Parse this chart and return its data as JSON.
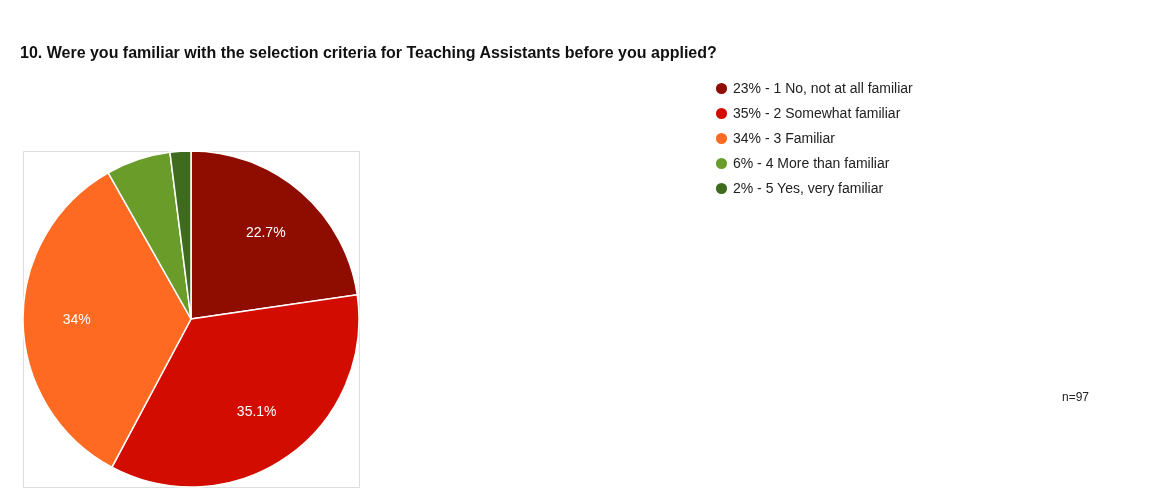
{
  "chart_data": {
    "type": "pie",
    "title": "10. Were you familiar with the selection criteria for Teaching Assistants before you applied?",
    "categories": [
      "23% - 1 No, not at all familiar",
      "35% - 2 Somewhat familiar",
      "34% - 3 Familiar",
      "6% - 4 More than familiar",
      "2% - 5 Yes, very familiar"
    ],
    "values": [
      22.7,
      35.1,
      34,
      6.2,
      2.0
    ],
    "value_labels": [
      "22.7%",
      "35.1%",
      "34%",
      null,
      null
    ],
    "colors": [
      "#8f0c00",
      "#d30c00",
      "#ff6a22",
      "#6a9c2a",
      "#3e6b1e"
    ],
    "legend": "right",
    "annotations": [
      "n=97"
    ]
  }
}
